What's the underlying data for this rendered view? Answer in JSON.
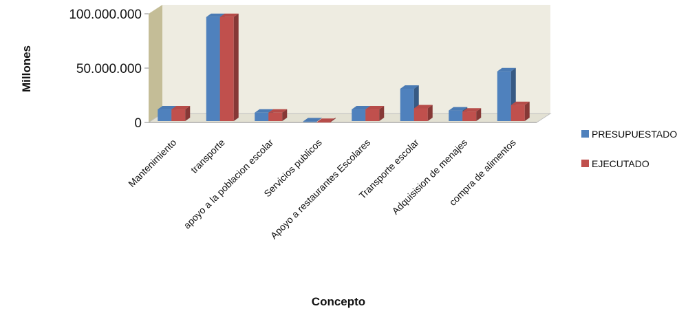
{
  "chart_data": {
    "type": "bar",
    "style": "3d-clustered-column",
    "xlabel": "Concepto",
    "ylabel": "Millones",
    "ylim": [
      0,
      100000000
    ],
    "yticks": [
      0,
      50000000,
      100000000
    ],
    "ytick_labels": [
      "0",
      "50.000.000",
      "100.000.000"
    ],
    "categories": [
      "Mantenimiento",
      "transporte",
      "apoyo a la poblacion escolar",
      "Servicios publicos",
      "Apoyo a restaurantes Escolares",
      "Transporte escolar",
      "Adquisision de menajes",
      "compra de alimentos"
    ],
    "series": [
      {
        "name": "PRESUPUESTADO",
        "color": "#4F81BD",
        "values": [
          12000000,
          97000000,
          9000000,
          1000000,
          12000000,
          31000000,
          11000000,
          47000000
        ]
      },
      {
        "name": "EJECUTADO",
        "color": "#C0504D",
        "values": [
          12000000,
          97000000,
          9000000,
          500000,
          12000000,
          13000000,
          10000000,
          16000000
        ]
      }
    ],
    "legend_position": "right",
    "wall_color": "#EEECE1",
    "grid": false
  }
}
